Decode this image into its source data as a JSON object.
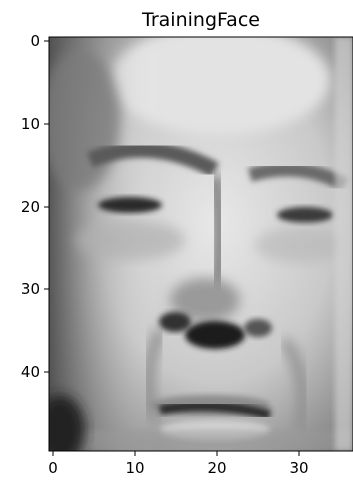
{
  "title": "TrainingFace",
  "image": {
    "description": "Grayscale pixelated face image",
    "pixel_grid": {
      "columns": 37,
      "rows": 50
    },
    "colormap": "gray"
  },
  "x_axis": {
    "ticks": [
      0,
      10,
      20,
      30
    ],
    "tick_labels": [
      "0",
      "10",
      "20",
      "30"
    ],
    "range": [
      -0.5,
      36.5
    ]
  },
  "y_axis": {
    "ticks": [
      0,
      10,
      20,
      30,
      40
    ],
    "tick_labels": [
      "0",
      "10",
      "20",
      "30",
      "40"
    ],
    "range": [
      -0.5,
      49.5
    ],
    "inverted": true
  }
}
